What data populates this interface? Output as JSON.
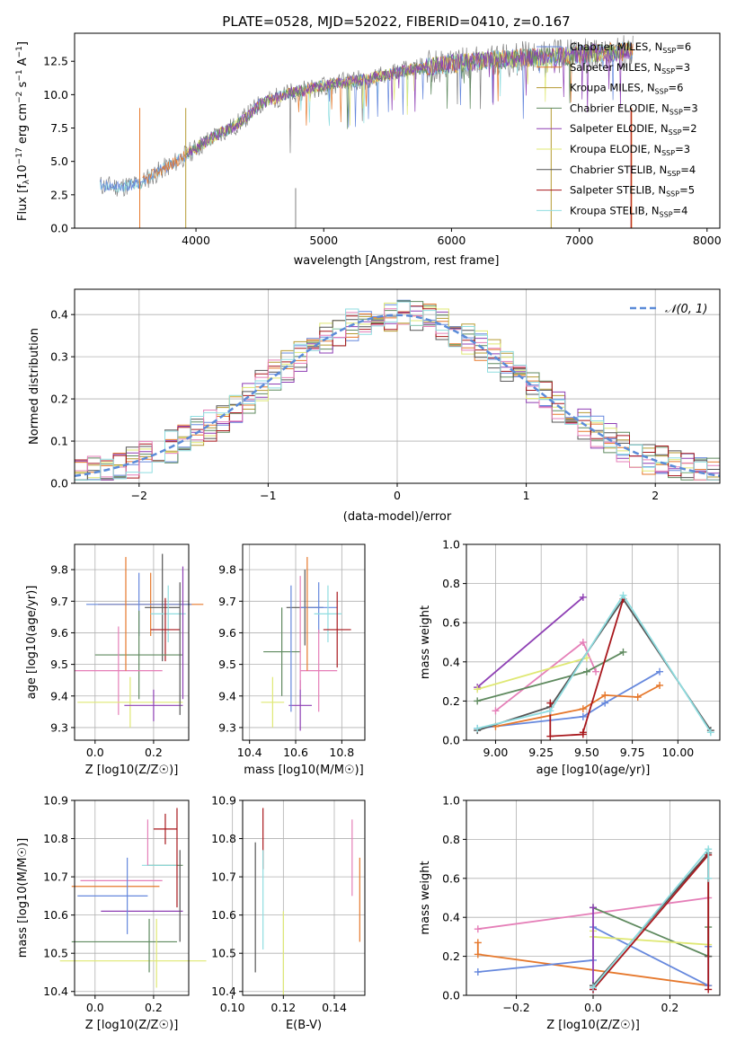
{
  "figure_title": "PLATE=0528, MJD=52022, FIBERID=0410, z=0.167",
  "models": [
    {
      "label": "Chabrier MILES, N",
      "sub": "SSP",
      "tail": "=6",
      "color": "#6688dd"
    },
    {
      "label": "Salpeter MILES, N",
      "sub": "SSP",
      "tail": "=3",
      "color": "#e6782c"
    },
    {
      "label": "Kroupa MILES, N",
      "sub": "SSP",
      "tail": "=6",
      "color": "#b59a32"
    },
    {
      "label": "Chabrier ELODIE, N",
      "sub": "SSP",
      "tail": "=3",
      "color": "#5f8a5f"
    },
    {
      "label": "Salpeter ELODIE, N",
      "sub": "SSP",
      "tail": "=2",
      "color": "#8e3fb4"
    },
    {
      "label": "Kroupa ELODIE, N",
      "sub": "SSP",
      "tail": "=3",
      "color": "#dfe873"
    },
    {
      "label": "Chabrier STELIB, N",
      "sub": "SSP",
      "tail": "=4",
      "color": "#555555"
    },
    {
      "label": "Salpeter STELIB, N",
      "sub": "SSP",
      "tail": "=5",
      "color": "#a8171c"
    },
    {
      "label": "Kroupa STELIB, N",
      "sub": "SSP",
      "tail": "=4",
      "color": "#8fdde0"
    }
  ],
  "extra_colors": {
    "pink": "#e57fb8",
    "mint": "#8fdde0",
    "lime": "#d7e86a"
  },
  "chart_data": [
    {
      "id": "spectrum",
      "type": "line",
      "title": "PLATE=0528, MJD=52022, FIBERID=0410, z=0.167",
      "xlabel": "wavelength [Angstrom, rest frame]",
      "ylabel_parts": [
        "Flux [f",
        "λ",
        "10",
        "−17",
        " erg cm",
        "−2",
        " s",
        "−1",
        " A",
        "−1",
        "]"
      ],
      "xlim": [
        3050,
        8100
      ],
      "ylim": [
        0,
        14.6
      ],
      "xticks": [
        4000,
        5000,
        6000,
        7000,
        8000
      ],
      "yticks": [
        "0.0",
        "2.5",
        "5.0",
        "7.5",
        "10.0",
        "12.5"
      ],
      "continuum": {
        "x": [
          3250,
          3400,
          3550,
          3700,
          3850,
          4000,
          4100,
          4200,
          4300,
          4400,
          4500,
          4700,
          4900,
          5100,
          5300,
          5500,
          5700,
          5900,
          6100,
          6300,
          6500,
          6700,
          6900,
          7100,
          7300,
          7420
        ],
        "y": [
          3.2,
          3.1,
          3.3,
          4.2,
          5.0,
          6.0,
          6.6,
          7.2,
          7.6,
          8.4,
          9.3,
          10.0,
          10.5,
          10.8,
          11.1,
          11.5,
          11.9,
          12.2,
          12.4,
          12.6,
          12.7,
          12.8,
          12.9,
          13.1,
          13.2,
          13.3
        ]
      },
      "legend_position": "upper right"
    },
    {
      "id": "residual-hist",
      "type": "histogram",
      "xlabel": "(data-model)/error",
      "ylabel": "Normed distribution",
      "xlim": [
        -2.5,
        2.5
      ],
      "ylim": [
        0,
        0.46
      ],
      "xticks": [
        "−2",
        "−1",
        "0",
        "1",
        "2"
      ],
      "yticks": [
        "0.0",
        "0.1",
        "0.2",
        "0.3",
        "0.4"
      ],
      "bin_width": 0.1,
      "reference": {
        "label": "N(0,1)",
        "style": "dashed",
        "color": "#5b8bd8"
      },
      "grid": true,
      "legend_position": "upper right"
    },
    {
      "id": "age-vs-Z",
      "type": "errorbar",
      "xlabel": "Z [log10(Z/Z☉)]",
      "ylabel": "age  [log10(age/yr)]",
      "xlim": [
        -0.07,
        0.32
      ],
      "ylim": [
        9.26,
        9.88
      ],
      "xticks": [
        "0.0",
        "0.2"
      ],
      "yticks": [
        "9.3",
        "9.4",
        "9.5",
        "9.6",
        "9.7",
        "9.8"
      ],
      "points": [
        {
          "x": 0.19,
          "xerr": 0.18,
          "y": 9.69,
          "yerr": 0.1,
          "c": "#e6782c"
        },
        {
          "x": 0.15,
          "xerr": 0.18,
          "y": 9.69,
          "yerr": 0.1,
          "c": "#6688dd"
        },
        {
          "x": 0.23,
          "xerr": 0.06,
          "y": 9.68,
          "yerr": 0.17,
          "c": "#555555"
        },
        {
          "x": 0.25,
          "xerr": 0.06,
          "y": 9.66,
          "yerr": 0.09,
          "c": "#8fdde0"
        },
        {
          "x": 0.24,
          "xerr": 0.05,
          "y": 9.61,
          "yerr": 0.1,
          "c": "#a8171c"
        },
        {
          "x": 0.15,
          "xerr": 0.15,
          "y": 9.53,
          "yerr": 0.14,
          "c": "#5f8a5f"
        },
        {
          "x": 0.08,
          "xerr": 0.15,
          "y": 9.48,
          "yerr": 0.14,
          "c": "#e57fb8"
        },
        {
          "x": 0.12,
          "xerr": 0.18,
          "y": 9.38,
          "yerr": 0.08,
          "c": "#dfe873"
        },
        {
          "x": 0.2,
          "xerr": 0.1,
          "y": 9.37,
          "yerr": 0.05,
          "c": "#8e3fb4"
        },
        {
          "x": 0.105,
          "xerr": 0.0,
          "y": 9.66,
          "yerr": 0.18,
          "c": "#e6782c"
        },
        {
          "x": 0.3,
          "xerr": 0.0,
          "y": 9.6,
          "yerr": 0.21,
          "c": "#8e3fb4"
        },
        {
          "x": 0.29,
          "xerr": 0.0,
          "y": 9.55,
          "yerr": 0.21,
          "c": "#555555"
        }
      ]
    },
    {
      "id": "age-vs-mass",
      "type": "errorbar",
      "xlabel": "mass [log10(M/M☉)]",
      "xlim": [
        10.37,
        10.9
      ],
      "ylim": [
        9.26,
        9.88
      ],
      "xticks": [
        "10.4",
        "10.6",
        "10.8"
      ],
      "yticks": [
        "9.3",
        "9.4",
        "9.5",
        "9.6",
        "9.7",
        "9.8"
      ],
      "points": [
        {
          "x": 10.64,
          "xerr": 0.08,
          "y": 9.68,
          "yerr": 0.12,
          "c": "#555555"
        },
        {
          "x": 10.7,
          "xerr": 0.08,
          "y": 9.68,
          "yerr": 0.08,
          "c": "#6688dd"
        },
        {
          "x": 10.74,
          "xerr": 0.06,
          "y": 9.66,
          "yerr": 0.09,
          "c": "#8fdde0"
        },
        {
          "x": 10.78,
          "xerr": 0.06,
          "y": 9.61,
          "yerr": 0.12,
          "c": "#a8171c"
        },
        {
          "x": 10.54,
          "xerr": 0.08,
          "y": 9.54,
          "yerr": 0.14,
          "c": "#5f8a5f"
        },
        {
          "x": 10.7,
          "xerr": 0.08,
          "y": 9.48,
          "yerr": 0.13,
          "c": "#e57fb8"
        },
        {
          "x": 10.5,
          "xerr": 0.05,
          "y": 9.38,
          "yerr": 0.08,
          "c": "#dfe873"
        },
        {
          "x": 10.62,
          "xerr": 0.05,
          "y": 9.37,
          "yerr": 0.08,
          "c": "#8e3fb4"
        },
        {
          "x": 10.65,
          "xerr": 0.0,
          "y": 9.66,
          "yerr": 0.18,
          "c": "#e6782c"
        },
        {
          "x": 10.62,
          "xerr": 0.0,
          "y": 9.6,
          "yerr": 0.18,
          "c": "#e57fb8"
        },
        {
          "x": 10.58,
          "xerr": 0.0,
          "y": 9.55,
          "yerr": 0.2,
          "c": "#6688dd"
        }
      ]
    },
    {
      "id": "weight-vs-age",
      "type": "line",
      "xlabel": "age  [log10(age/yr)]",
      "ylabel": "mass weight",
      "xlim": [
        8.84,
        10.23
      ],
      "ylim": [
        0,
        1.0
      ],
      "xticks": [
        "9.00",
        "9.25",
        "9.50",
        "9.75",
        "10.00"
      ],
      "yticks": [
        "0.0",
        "0.2",
        "0.4",
        "0.6",
        "0.8",
        "1.0"
      ],
      "grid": true,
      "series": [
        {
          "c": "#8e3fb4",
          "x": [
            8.9,
            9.48
          ],
          "y": [
            0.27,
            0.73
          ]
        },
        {
          "c": "#e57fb8",
          "x": [
            9.0,
            9.48,
            9.55
          ],
          "y": [
            0.15,
            0.5,
            0.35
          ]
        },
        {
          "c": "#dfe873",
          "x": [
            8.9,
            9.5
          ],
          "y": [
            0.26,
            0.42
          ]
        },
        {
          "c": "#5f8a5f",
          "x": [
            8.9,
            9.5,
            9.7
          ],
          "y": [
            0.2,
            0.35,
            0.45
          ]
        },
        {
          "c": "#6688dd",
          "x": [
            8.9,
            9.48,
            9.6,
            9.9
          ],
          "y": [
            0.06,
            0.12,
            0.19,
            0.35
          ]
        },
        {
          "c": "#e6782c",
          "x": [
            9.0,
            9.48,
            9.6,
            9.78,
            9.9
          ],
          "y": [
            0.07,
            0.16,
            0.23,
            0.22,
            0.28
          ]
        },
        {
          "c": "#555555",
          "x": [
            8.9,
            9.3,
            9.7,
            10.18
          ],
          "y": [
            0.05,
            0.17,
            0.72,
            0.05
          ]
        },
        {
          "c": "#a8171c",
          "x": [
            9.3,
            9.3,
            9.48,
            9.48,
            9.7
          ],
          "y": [
            0.19,
            0.02,
            0.03,
            0.04,
            0.72
          ]
        },
        {
          "c": "#8fdde0",
          "x": [
            8.9,
            9.3,
            9.7,
            10.18
          ],
          "y": [
            0.06,
            0.15,
            0.74,
            0.04
          ]
        }
      ]
    },
    {
      "id": "mass-vs-Z",
      "type": "errorbar",
      "xlabel": "Z [log10(Z/Z☉)]",
      "ylabel": "mass [log10(M/M☉)]",
      "xlim": [
        -0.07,
        0.32
      ],
      "ylim": [
        10.39,
        10.9
      ],
      "xticks": [
        "0.0",
        "0.2"
      ],
      "yticks": [
        "10.4",
        "10.5",
        "10.6",
        "10.7",
        "10.8",
        "10.9"
      ],
      "points": [
        {
          "x": 0.24,
          "xerr": 0.04,
          "y": 10.825,
          "yerr": 0.04,
          "c": "#a8171c"
        },
        {
          "x": 0.24,
          "xerr": 0.06,
          "y": 10.73,
          "yerr": 0.0,
          "c": "#5f8a5f"
        },
        {
          "x": 0.22,
          "xerr": 0.06,
          "y": 10.73,
          "yerr": 0.0,
          "c": "#8fdde0"
        },
        {
          "x": 0.09,
          "xerr": 0.14,
          "y": 10.69,
          "yerr": 0.0,
          "c": "#e57fb8"
        },
        {
          "x": 0.07,
          "xerr": 0.15,
          "y": 10.675,
          "yerr": 0.0,
          "c": "#e6782c"
        },
        {
          "x": 0.06,
          "xerr": 0.12,
          "y": 10.65,
          "yerr": 0.0,
          "c": "#6688dd"
        },
        {
          "x": 0.16,
          "xerr": 0.14,
          "y": 10.61,
          "yerr": 0.0,
          "c": "#8e3fb4"
        },
        {
          "x": 0.1,
          "xerr": 0.18,
          "y": 10.53,
          "yerr": 0.0,
          "c": "#5f8a5f"
        },
        {
          "x": 0.13,
          "xerr": 0.25,
          "y": 10.48,
          "yerr": 0.0,
          "c": "#dfe873"
        },
        {
          "x": 0.28,
          "xerr": 0.0,
          "y": 10.75,
          "yerr": 0.13,
          "c": "#a8171c"
        },
        {
          "x": 0.29,
          "xerr": 0.0,
          "y": 10.65,
          "yerr": 0.12,
          "c": "#555555"
        },
        {
          "x": 0.21,
          "xerr": 0.0,
          "y": 10.5,
          "yerr": 0.09,
          "c": "#dfe873"
        },
        {
          "x": 0.185,
          "xerr": 0.0,
          "y": 10.52,
          "yerr": 0.07,
          "c": "#5f8a5f"
        },
        {
          "x": 0.11,
          "xerr": 0.0,
          "y": 10.65,
          "yerr": 0.1,
          "c": "#6688dd"
        },
        {
          "x": 0.18,
          "xerr": 0.0,
          "y": 10.79,
          "yerr": 0.06,
          "c": "#e57fb8"
        }
      ]
    },
    {
      "id": "mass-vs-EBV",
      "type": "errorbar",
      "xlabel": "E(B-V)",
      "xlim": [
        0.104,
        0.152
      ],
      "ylim": [
        10.39,
        10.9
      ],
      "xticks": [
        "0.10",
        "0.12",
        "0.14"
      ],
      "yticks": [
        "10.4",
        "10.5",
        "10.6",
        "10.7",
        "10.8",
        "10.9"
      ],
      "points": [
        {
          "x": 0.109,
          "xerr": 0.0,
          "y": 10.62,
          "yerr": 0.17,
          "c": "#555555"
        },
        {
          "x": 0.112,
          "xerr": 0.0,
          "y": 10.8,
          "yerr": 0.08,
          "c": "#a8171c"
        },
        {
          "x": 0.112,
          "xerr": 0.0,
          "y": 10.64,
          "yerr": 0.13,
          "c": "#8fdde0"
        },
        {
          "x": 0.12,
          "xerr": 0.0,
          "y": 10.5,
          "yerr": 0.11,
          "c": "#dfe873"
        },
        {
          "x": 0.147,
          "xerr": 0.0,
          "y": 10.75,
          "yerr": 0.1,
          "c": "#e57fb8"
        },
        {
          "x": 0.15,
          "xerr": 0.0,
          "y": 10.64,
          "yerr": 0.11,
          "c": "#e6782c"
        }
      ]
    },
    {
      "id": "weight-vs-Z",
      "type": "line",
      "xlabel": "Z [log10(Z/Z☉)]",
      "ylabel": "mass weight",
      "xlim": [
        -0.33,
        0.33
      ],
      "ylim": [
        0,
        1.0
      ],
      "xticks": [
        "−0.2",
        "0.0",
        "0.2"
      ],
      "yticks": [
        "0.0",
        "0.2",
        "0.4",
        "0.6",
        "0.8",
        "1.0"
      ],
      "grid": true,
      "series": [
        {
          "c": "#e57fb8",
          "x": [
            -0.3,
            0.3
          ],
          "y": [
            0.34,
            0.5
          ]
        },
        {
          "c": "#e6782c",
          "x": [
            -0.3,
            -0.3,
            0.3
          ],
          "y": [
            0.27,
            0.21,
            0.05
          ]
        },
        {
          "c": "#6688dd",
          "x": [
            -0.3,
            0.0,
            0.0,
            0.3,
            0.3
          ],
          "y": [
            0.12,
            0.18,
            0.35,
            0.05,
            0.25
          ]
        },
        {
          "c": "#5f8a5f",
          "x": [
            0.0,
            0.3,
            0.3
          ],
          "y": [
            0.45,
            0.2,
            0.35
          ]
        },
        {
          "c": "#dfe873",
          "x": [
            0.0,
            0.0,
            0.3
          ],
          "y": [
            0.33,
            0.3,
            0.26
          ]
        },
        {
          "c": "#8e3fb4",
          "x": [
            0.0,
            0.0
          ],
          "y": [
            0.03,
            0.45
          ]
        },
        {
          "c": "#555555",
          "x": [
            0.0,
            0.3,
            0.3
          ],
          "y": [
            0.05,
            0.73,
            0.2
          ]
        },
        {
          "c": "#a8171c",
          "x": [
            0.0,
            0.3,
            0.3
          ],
          "y": [
            0.03,
            0.72,
            0.03
          ]
        },
        {
          "c": "#8fdde0",
          "x": [
            0.0,
            0.3,
            0.3
          ],
          "y": [
            0.04,
            0.75,
            0.6
          ]
        }
      ]
    }
  ]
}
